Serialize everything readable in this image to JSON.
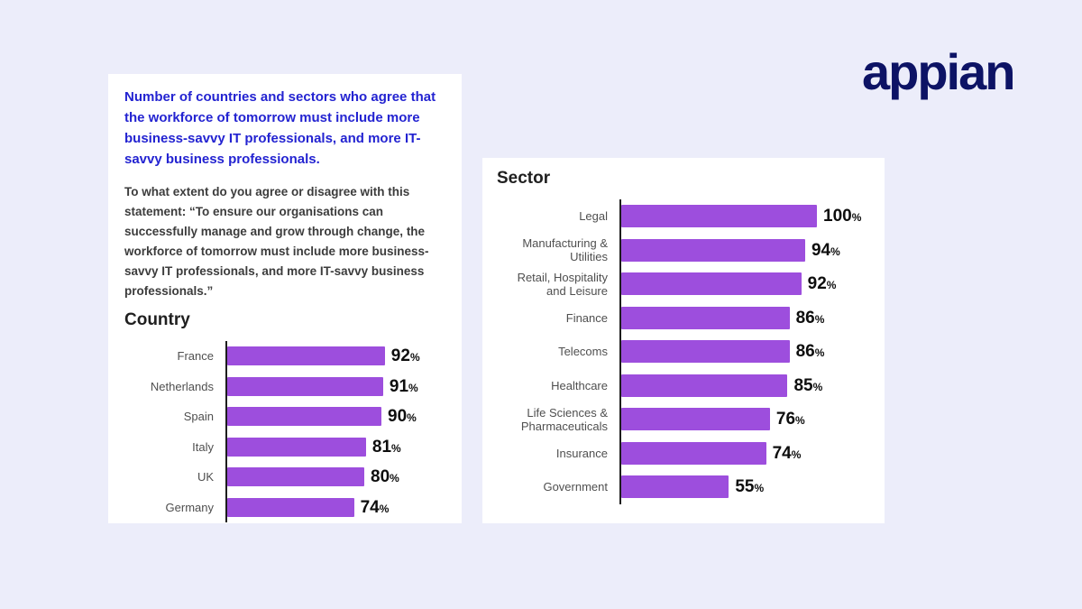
{
  "logo": {
    "text": "appian",
    "color": "#0d1365"
  },
  "left_panel": {
    "title": "Number of countries and sectors who agree that the workforce of tomorrow must include more business-savvy IT professionals, and more IT-savvy business professionals.",
    "subtitle": "To what extent do you agree or disagree with this statement: “To ensure our organisations can successfully manage and grow through change, the workforce of tomorrow must include more business-savvy IT professionals, and more IT-savvy business professionals.”"
  },
  "chart_data": [
    {
      "type": "bar",
      "orientation": "horizontal",
      "title": "Country",
      "categories": [
        "France",
        "Netherlands",
        "Spain",
        "Italy",
        "UK",
        "Germany"
      ],
      "values": [
        92,
        91,
        90,
        81,
        80,
        74
      ],
      "unit": "%",
      "bar_color": "#9d4edd",
      "xlabel": "",
      "ylabel": "",
      "xlim": [
        0,
        100
      ],
      "grid": false,
      "legend": "none"
    },
    {
      "type": "bar",
      "orientation": "horizontal",
      "title": "Sector",
      "categories": [
        "Legal",
        "Manufacturing & Utilities",
        "Retail, Hospitality and Leisure",
        "Finance",
        "Telecoms",
        "Healthcare",
        "Life Sciences & Pharmaceuticals",
        "Insurance",
        "Government"
      ],
      "values": [
        100,
        94,
        92,
        86,
        86,
        85,
        76,
        74,
        55
      ],
      "unit": "%",
      "bar_color": "#9d4edd",
      "xlabel": "",
      "ylabel": "",
      "xlim": [
        0,
        100
      ],
      "grid": false,
      "legend": "none"
    }
  ]
}
